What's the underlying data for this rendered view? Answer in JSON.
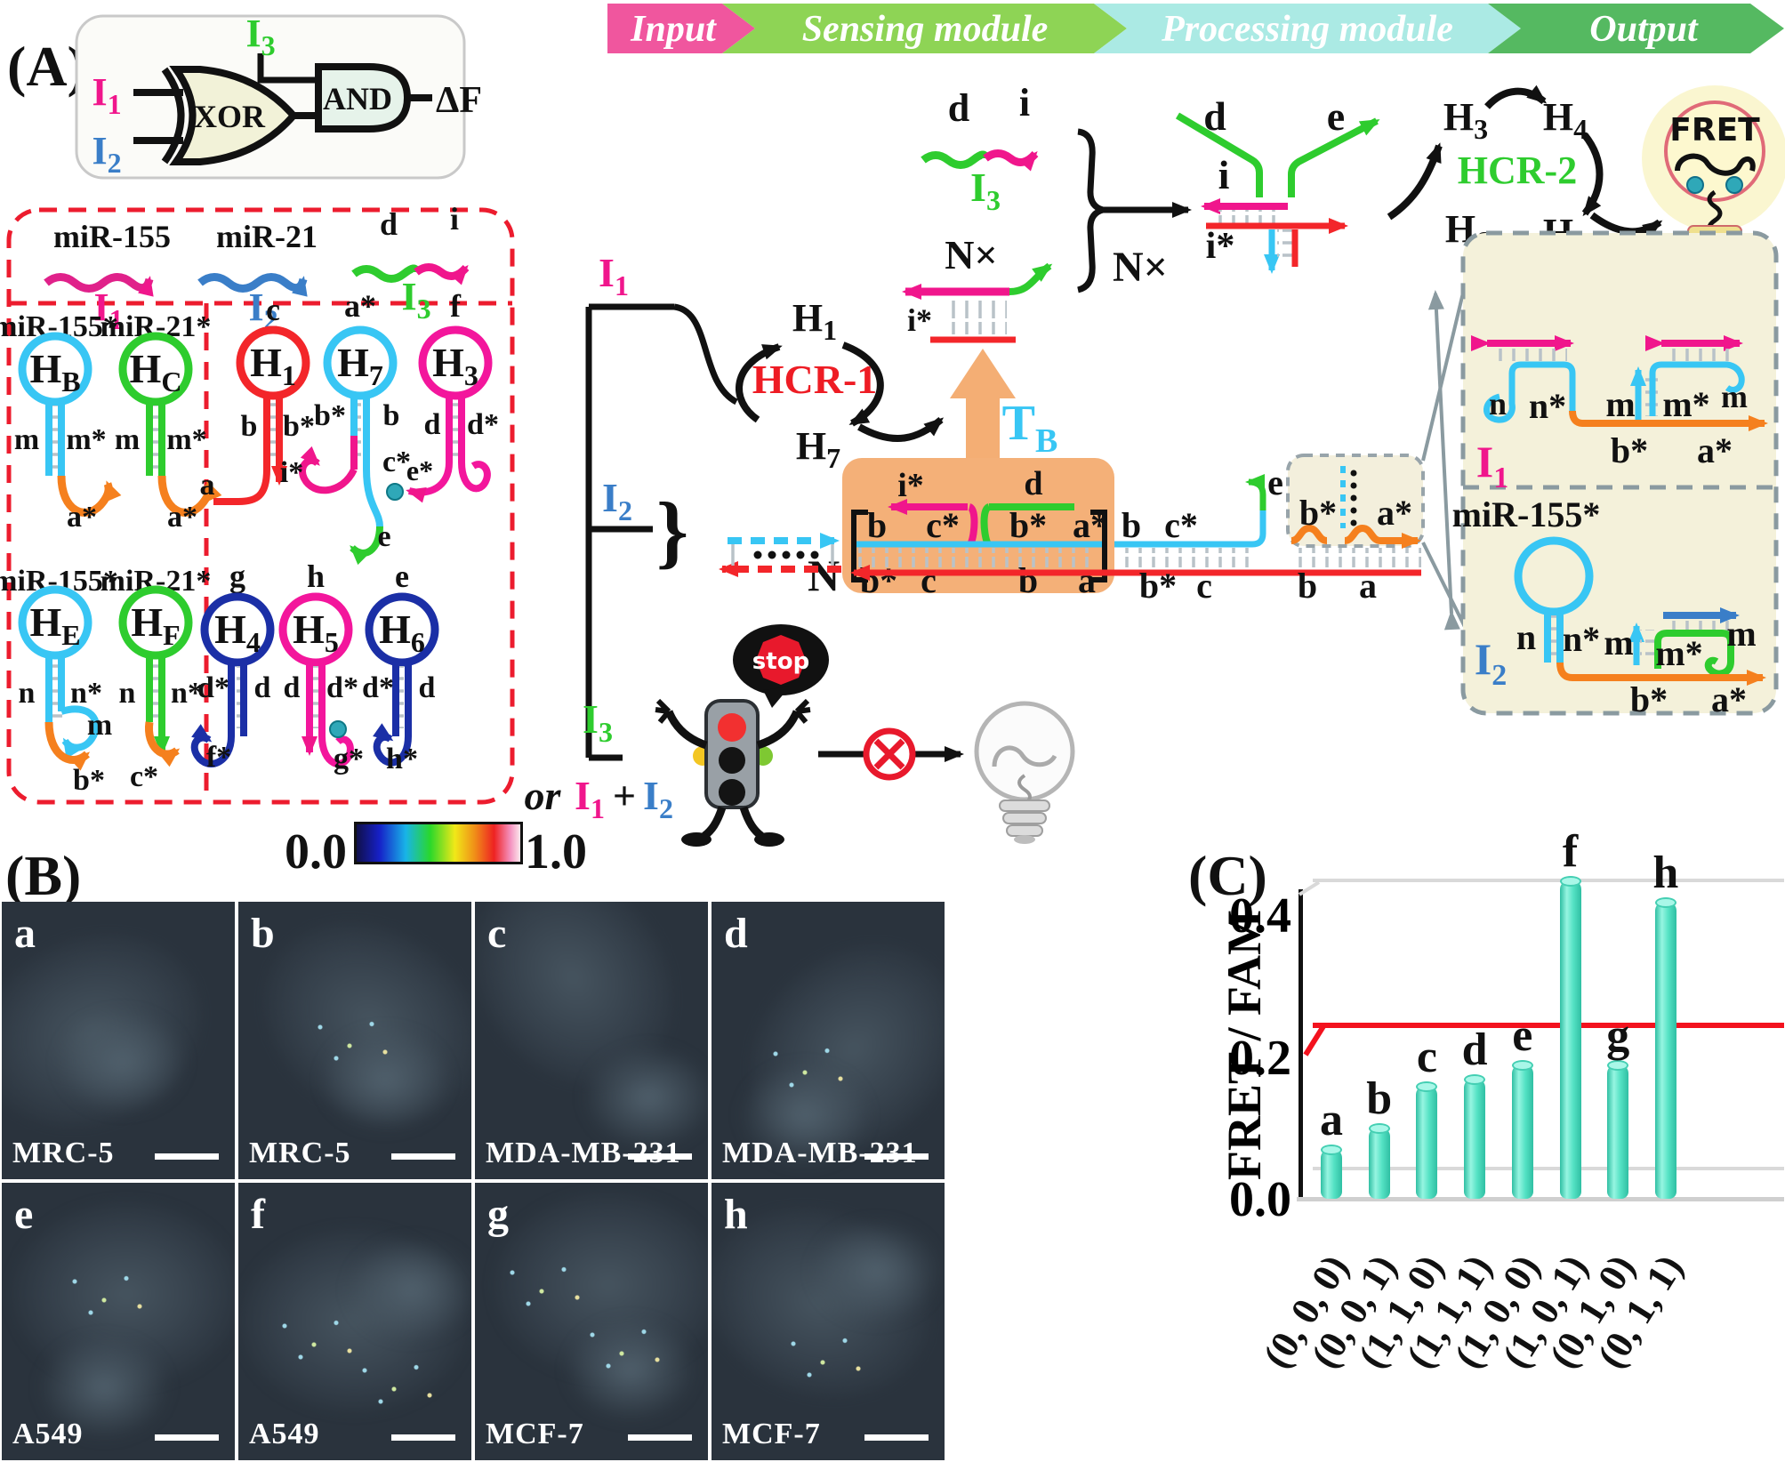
{
  "colors": {
    "accent_pink": "#f0168c",
    "accent_blue": "#3a7ec8",
    "accent_green": "#2ecc2e",
    "accent_red": "#ee1c24",
    "accent_cyan": "#38c6f4",
    "accent_orange": "#f5801e",
    "accent_navy": "#1b2fa6",
    "banner_input": "#f0569e",
    "banner_sensing": "#8ed455",
    "banner_processing": "#abeae4",
    "banner_output": "#55b961",
    "bar_fill": "#55e2c4",
    "threshold_red": "#f3121e",
    "box_orange": "#f4b078"
  },
  "panelA": {
    "label": "(A)",
    "gate": {
      "xor": "XOR",
      "and": "AND",
      "out": "ΔF"
    },
    "I": {
      "main": "I",
      "s1": "1",
      "s2": "2",
      "s3": "3"
    },
    "banner": {
      "input": "Input",
      "sensing": "Sensing module",
      "processing": "Processing module",
      "output": "Output"
    },
    "names": {
      "mir155": "miR-155",
      "mir21": "miR-21",
      "mir155s": "miR-155*",
      "mir21s": "miR-21*",
      "hcr1": "HCR-1",
      "hcr2": "HCR-2",
      "fret": "FRET",
      "stop": "stop",
      "or": "or",
      "plus": "+",
      "N": "N",
      "Nx": "N×",
      "T": "T",
      "Tsub": "B",
      "brace": "}"
    },
    "H": {
      "main": "H",
      "B": "B",
      "C": "C",
      "E": "E",
      "F": "F",
      "h1": "1",
      "h3": "3",
      "h4": "4",
      "h5": "5",
      "h6": "6",
      "h7": "7"
    },
    "dom": {
      "a": "a",
      "as": "a*",
      "b": "b",
      "bs": "b*",
      "c": "c",
      "cs": "c*",
      "d": "d",
      "ds": "d*",
      "e": "e",
      "es": "e*",
      "f": "f",
      "fs": "f*",
      "g": "g",
      "gs": "g*",
      "h": "h",
      "hs": "h*",
      "i": "i",
      "is": "i*",
      "m": "m",
      "ms": "m*",
      "n": "n",
      "ns": "n*"
    }
  },
  "panelB": {
    "label": "(B)",
    "scale_min": "0.0",
    "scale_max": "1.0",
    "cells": [
      {
        "letter": "a",
        "name": "MRC-5"
      },
      {
        "letter": "b",
        "name": "MRC-5"
      },
      {
        "letter": "c",
        "name": "MDA-MB-231"
      },
      {
        "letter": "d",
        "name": "MDA-MB-231"
      },
      {
        "letter": "e",
        "name": "A549"
      },
      {
        "letter": "f",
        "name": "A549"
      },
      {
        "letter": "g",
        "name": "MCF-7"
      },
      {
        "letter": "h",
        "name": "MCF-7"
      }
    ]
  },
  "panelC": {
    "label": "(C)"
  },
  "chart_data": {
    "type": "bar",
    "ylabel": "FRET / FAM",
    "categories": [
      "(0, 0, 0)",
      "(0, 0, 1)",
      "(1, 1, 0)",
      "(1, 1, 1)",
      "(1, 0, 0)",
      "(1, 0, 1)",
      "(0, 1, 0)",
      "(0, 1, 1)"
    ],
    "bar_labels": [
      "a",
      "b",
      "c",
      "d",
      "e",
      "f",
      "g",
      "h"
    ],
    "values": [
      0.07,
      0.1,
      0.16,
      0.17,
      0.19,
      0.45,
      0.19,
      0.42
    ],
    "yticks": [
      0.0,
      0.2,
      0.4
    ],
    "ytick_labels": [
      "0.0",
      "0.2",
      "0.4"
    ],
    "ylim": [
      0,
      0.47
    ],
    "threshold_line": 0.245,
    "threshold_color": "#f3121e",
    "bar_color": "#55e2c4",
    "legend": null,
    "grid": "partial-3d"
  }
}
